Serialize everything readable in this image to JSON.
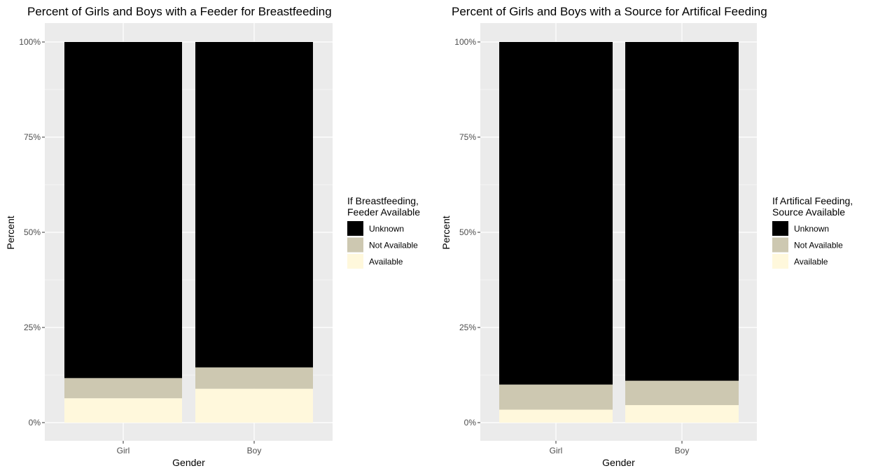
{
  "chart_data": [
    {
      "type": "bar",
      "stacked": true,
      "title": "Percent of Girls and Boys with a Feeder for Breastfeeding",
      "xlabel": "Gender",
      "ylabel": "Percent",
      "ylim": [
        0,
        100
      ],
      "yticks": [
        "0%",
        "25%",
        "50%",
        "75%",
        "100%"
      ],
      "grid": true,
      "categories": [
        "Girl",
        "Boy"
      ],
      "legend": {
        "title": [
          "If Breastfeeding,",
          "Feeder Available"
        ],
        "position": "right"
      },
      "series": [
        {
          "name": "Available",
          "color": "#fff8dc",
          "values": [
            6.4,
            8.9
          ]
        },
        {
          "name": "Not Available",
          "color": "#cdc8b1",
          "values": [
            5.3,
            5.6
          ]
        },
        {
          "name": "Unknown",
          "color": "#000000",
          "values": [
            88.3,
            85.5
          ]
        }
      ]
    },
    {
      "type": "bar",
      "stacked": true,
      "title": "Percent of Girls and Boys with a Source for Artifical Feeding",
      "xlabel": "Gender",
      "ylabel": "Percent",
      "ylim": [
        0,
        100
      ],
      "yticks": [
        "0%",
        "25%",
        "50%",
        "75%",
        "100%"
      ],
      "grid": true,
      "categories": [
        "Girl",
        "Boy"
      ],
      "legend": {
        "title": [
          "If Artifical Feeding,",
          "Source Available"
        ],
        "position": "right"
      },
      "series": [
        {
          "name": "Available",
          "color": "#fff8dc",
          "values": [
            3.4,
            4.6
          ]
        },
        {
          "name": "Not Available",
          "color": "#cdc8b1",
          "values": [
            6.6,
            6.4
          ]
        },
        {
          "name": "Unknown",
          "color": "#000000",
          "values": [
            90.0,
            89.0
          ]
        }
      ]
    }
  ]
}
